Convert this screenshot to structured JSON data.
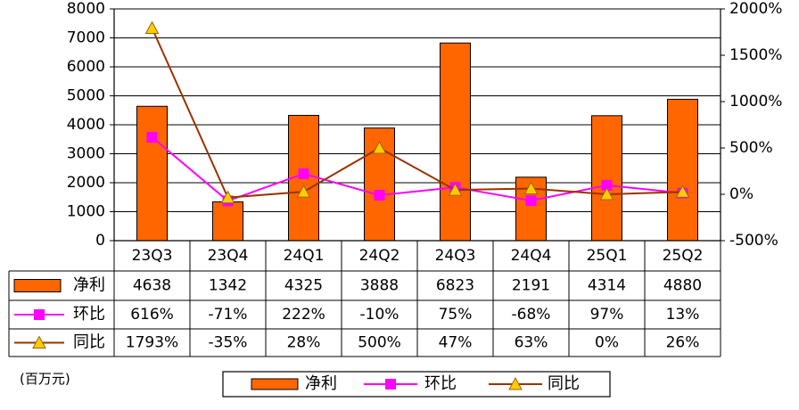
{
  "chart_data": {
    "type": "bar",
    "categories": [
      "23Q3",
      "23Q4",
      "24Q1",
      "24Q2",
      "24Q3",
      "24Q4",
      "25Q1",
      "25Q2"
    ],
    "series": [
      {
        "name": "净利",
        "kind": "bar",
        "axis": "left",
        "color": "#FF6600",
        "values": [
          4638,
          1342,
          4325,
          3888,
          6823,
          2191,
          4314,
          4880
        ],
        "labels": [
          "4638",
          "1342",
          "4325",
          "3888",
          "6823",
          "2191",
          "4314",
          "4880"
        ]
      },
      {
        "name": "环比",
        "kind": "line",
        "axis": "right",
        "color": "#FF00FF",
        "marker": "square",
        "values": [
          616,
          -71,
          222,
          -10,
          75,
          -68,
          97,
          13
        ],
        "labels": [
          "616%",
          "-71%",
          "222%",
          "-10%",
          "75%",
          "-68%",
          "97%",
          "13%"
        ]
      },
      {
        "name": "同比",
        "kind": "line",
        "axis": "right",
        "color": "#993300",
        "marker": "triangle",
        "marker_color": "#FFCC00",
        "values": [
          1793,
          -35,
          28,
          500,
          47,
          63,
          0,
          26
        ],
        "labels": [
          "1793%",
          "-35%",
          "28%",
          "500%",
          "47%",
          "63%",
          "0%",
          "26%"
        ]
      }
    ],
    "y_left": {
      "ylim": [
        0,
        8000
      ],
      "ticks": [
        "0",
        "1000",
        "2000",
        "3000",
        "4000",
        "5000",
        "6000",
        "7000",
        "8000"
      ]
    },
    "y_right": {
      "ylim": [
        -500,
        2000
      ],
      "ticks": [
        "-500%",
        "0%",
        "500%",
        "1000%",
        "1500%",
        "2000%"
      ]
    },
    "grid": true,
    "data_table": true,
    "unit_label": "(百万元)",
    "legend": {
      "placement": "bottom",
      "entries": [
        "净利",
        "环比",
        "同比"
      ]
    }
  }
}
